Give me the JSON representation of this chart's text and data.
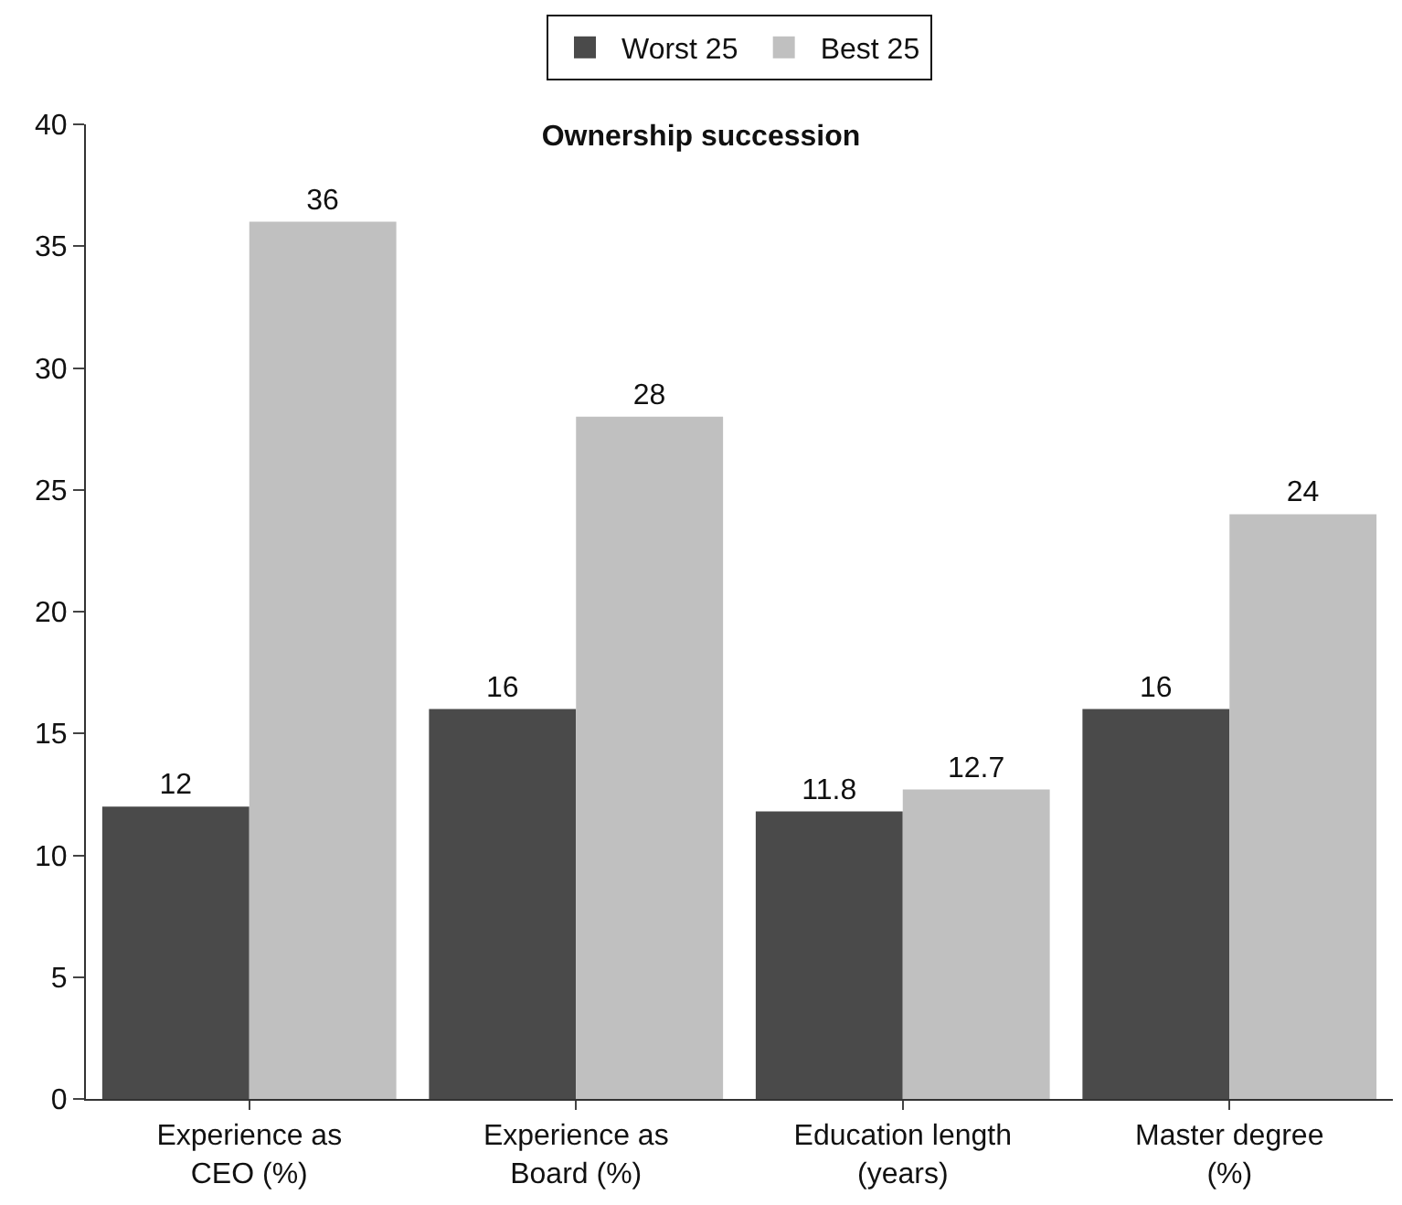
{
  "chart_data": {
    "type": "bar",
    "title": "Ownership succession",
    "categories": [
      "Experience as\nCEO (%)",
      "Experience as\nBoard (%)",
      "Education length\n(years)",
      "Master degree\n(%)"
    ],
    "series": [
      {
        "name": "Worst 25",
        "color": "#4a4a4a",
        "values": [
          12,
          16,
          11.8,
          16
        ]
      },
      {
        "name": "Best 25",
        "color": "#c0c0c0",
        "values": [
          36,
          28,
          12.7,
          24
        ]
      }
    ],
    "ylim": [
      0,
      40
    ],
    "yticks": [
      0,
      5,
      10,
      15,
      20,
      25,
      30,
      35,
      40
    ],
    "grid": false,
    "legend": "top",
    "data_labels": true
  }
}
